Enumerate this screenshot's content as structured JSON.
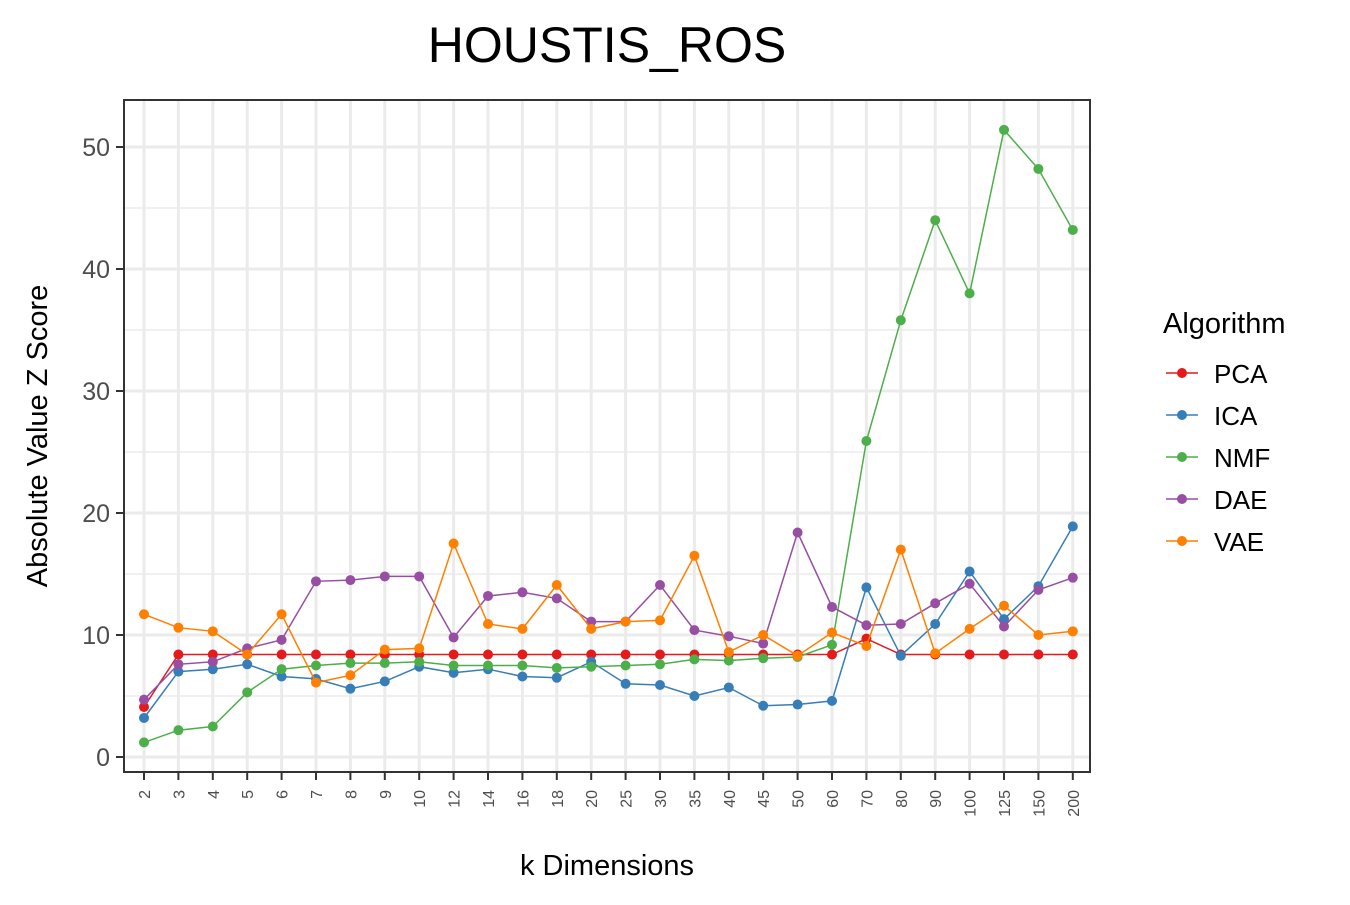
{
  "chart_data": {
    "type": "line",
    "title": "HOUSTIS_ROS",
    "xlabel": "k Dimensions",
    "ylabel": "Absolute Value Z Score",
    "ylim": [
      -1,
      54
    ],
    "yticks": [
      0,
      10,
      20,
      30,
      40,
      50
    ],
    "grid": true,
    "legend_title": "Algorithm",
    "legend_position": "right",
    "categories": [
      "2",
      "3",
      "4",
      "5",
      "6",
      "7",
      "8",
      "9",
      "10",
      "12",
      "14",
      "16",
      "18",
      "20",
      "25",
      "30",
      "35",
      "40",
      "45",
      "50",
      "60",
      "70",
      "80",
      "90",
      "100",
      "125",
      "150",
      "200"
    ],
    "series": [
      {
        "name": "PCA",
        "color": "#e41a1c",
        "values": [
          4.1,
          8.4,
          8.4,
          8.4,
          8.4,
          8.4,
          8.4,
          8.4,
          8.4,
          8.4,
          8.4,
          8.4,
          8.4,
          8.4,
          8.4,
          8.4,
          8.4,
          8.4,
          8.4,
          8.4,
          8.4,
          9.7,
          8.4,
          8.4,
          8.4,
          8.4,
          8.4,
          8.4
        ]
      },
      {
        "name": "ICA",
        "color": "#377eb8",
        "values": [
          3.2,
          7.0,
          7.2,
          7.6,
          6.6,
          6.4,
          5.6,
          6.2,
          7.4,
          6.9,
          7.2,
          6.6,
          6.5,
          7.8,
          6.0,
          5.9,
          5.0,
          5.7,
          4.2,
          4.3,
          4.6,
          13.9,
          8.3,
          10.9,
          15.2,
          11.3,
          14.0,
          18.9
        ]
      },
      {
        "name": "NMF",
        "color": "#4daf4a",
        "values": [
          1.2,
          2.2,
          2.5,
          5.3,
          7.2,
          7.5,
          7.7,
          7.7,
          7.8,
          7.5,
          7.5,
          7.5,
          7.3,
          7.4,
          7.5,
          7.6,
          8.0,
          7.9,
          8.1,
          8.2,
          9.2,
          25.9,
          35.8,
          44.0,
          38.0,
          51.4,
          48.2,
          43.2
        ]
      },
      {
        "name": "DAE",
        "color": "#984ea3",
        "values": [
          4.7,
          7.6,
          7.8,
          8.9,
          9.6,
          14.4,
          14.5,
          14.8,
          14.8,
          9.8,
          13.2,
          13.5,
          13.0,
          11.1,
          11.1,
          14.1,
          10.4,
          9.9,
          9.3,
          18.4,
          12.3,
          10.8,
          10.9,
          12.6,
          14.2,
          10.7,
          13.7,
          14.7
        ]
      },
      {
        "name": "VAE",
        "color": "#ff7f00",
        "values": [
          11.7,
          10.6,
          10.3,
          8.4,
          11.7,
          6.1,
          6.7,
          8.8,
          8.9,
          17.5,
          10.9,
          10.5,
          14.1,
          10.5,
          11.1,
          11.2,
          16.5,
          8.6,
          10.0,
          8.3,
          10.2,
          9.1,
          17.0,
          8.5,
          10.5,
          12.4,
          10.0,
          10.3
        ]
      }
    ]
  }
}
